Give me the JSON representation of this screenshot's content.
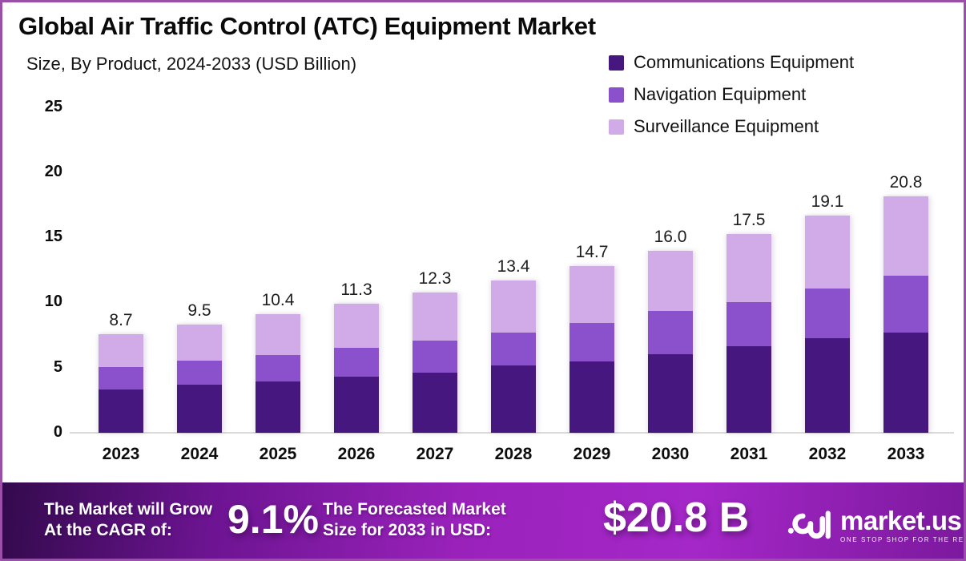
{
  "header": {
    "title": "Global Air Traffic Control (ATC) Equipment Market",
    "subtitle": "Size, By Product, 2024-2033 (USD Billion)"
  },
  "chart_data": {
    "type": "bar",
    "stacked": true,
    "title": "Global Air Traffic Control (ATC) Equipment Market Size, By Product, 2024-2033 (USD Billion)",
    "categories": [
      "2023",
      "2024",
      "2025",
      "2026",
      "2027",
      "2028",
      "2029",
      "2030",
      "2031",
      "2032",
      "2033"
    ],
    "series": [
      {
        "name": "Communications Equipment",
        "color": "#45177f",
        "values": [
          3.8,
          4.2,
          4.5,
          4.9,
          5.3,
          5.9,
          6.3,
          6.9,
          7.6,
          8.3,
          8.8
        ]
      },
      {
        "name": "Navigation Equipment",
        "color": "#8b51cd",
        "values": [
          2.0,
          2.1,
          2.3,
          2.5,
          2.8,
          2.9,
          3.4,
          3.8,
          3.9,
          4.4,
          5.0
        ]
      },
      {
        "name": "Surveillance Equipment",
        "color": "#d0abe8",
        "values": [
          2.9,
          3.2,
          3.6,
          3.9,
          4.2,
          4.6,
          5.0,
          5.3,
          6.0,
          6.4,
          7.0
        ]
      }
    ],
    "totals": [
      8.7,
      9.5,
      10.4,
      11.3,
      12.3,
      13.4,
      14.7,
      16.0,
      17.5,
      19.1,
      20.8
    ],
    "ylabel": "",
    "xlabel": "",
    "unit": "USD Billion",
    "ylim": [
      0,
      25
    ],
    "yticks": [
      0,
      5,
      10,
      15,
      20,
      25
    ],
    "grid": false,
    "legend_position": "top-right"
  },
  "banner": {
    "cagr_label_line1": "The Market will Grow",
    "cagr_label_line2": "At the CAGR of:",
    "cagr_value": "9.1%",
    "forecast_label_line1": "The Forecasted Market",
    "forecast_label_line2": "Size for 2033 in USD:",
    "forecast_value": "$20.8 B",
    "logo_text": "market.us",
    "logo_tagline": "ONE STOP SHOP FOR THE REPORTS"
  },
  "colors": {
    "frame_border": "#9b4fa8",
    "axis_line": "#dadada",
    "banner_gradient_start": "#330a4d",
    "banner_gradient_mid": "#a527c8",
    "banner_gradient_end": "#7c199e"
  }
}
